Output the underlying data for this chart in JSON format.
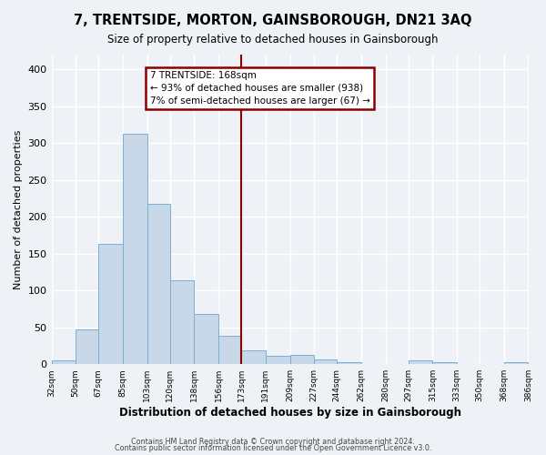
{
  "title": "7, TRENTSIDE, MORTON, GAINSBOROUGH, DN21 3AQ",
  "subtitle": "Size of property relative to detached houses in Gainsborough",
  "xlabel": "Distribution of detached houses by size in Gainsborough",
  "ylabel": "Number of detached properties",
  "bar_color": "#c8d8e8",
  "bar_edge_color": "#7bafd4",
  "background_color": "#eef2f7",
  "grid_color": "white",
  "vline_x": 173,
  "vline_color": "#8b0000",
  "annotation_title": "7 TRENTSIDE: 168sqm",
  "annotation_line1": "← 93% of detached houses are smaller (938)",
  "annotation_line2": "7% of semi-detached houses are larger (67) →",
  "bin_edges": [
    32,
    50,
    67,
    85,
    103,
    120,
    138,
    156,
    173,
    191,
    209,
    227,
    244,
    262,
    280,
    297,
    315,
    333,
    350,
    368,
    386
  ],
  "bin_heights": [
    5,
    47,
    163,
    312,
    217,
    114,
    68,
    39,
    19,
    11,
    12,
    7,
    3,
    0,
    0,
    5,
    3,
    0,
    0,
    3
  ],
  "ylim": [
    0,
    420
  ],
  "yticks": [
    0,
    50,
    100,
    150,
    200,
    250,
    300,
    350,
    400
  ],
  "footer1": "Contains HM Land Registry data © Crown copyright and database right 2024.",
  "footer2": "Contains public sector information licensed under the Open Government Licence v3.0."
}
